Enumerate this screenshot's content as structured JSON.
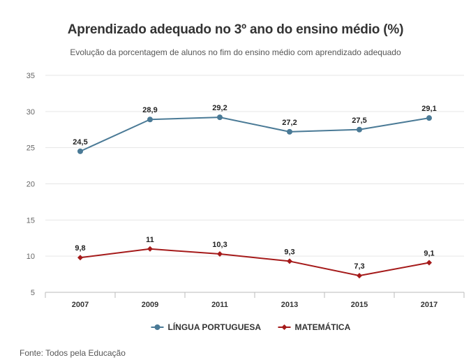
{
  "chart_data": {
    "type": "line",
    "title": "Aprendizado adequado no 3º ano do ensino médio (%)",
    "subtitle": "Evolução da porcentagem de alunos no fim do ensino médio com aprendizado adequado",
    "categories": [
      "2007",
      "2009",
      "2011",
      "2013",
      "2015",
      "2017"
    ],
    "ylim": [
      5,
      35
    ],
    "yticks": [
      5,
      10,
      15,
      20,
      25,
      30,
      35
    ],
    "grid": true,
    "legend_position": "bottom",
    "series": [
      {
        "name": "LÍNGUA PORTUGUESA",
        "color": "#4a7a96",
        "marker": "circle",
        "values": [
          24.5,
          28.9,
          29.2,
          27.2,
          27.5,
          29.1
        ],
        "labels": [
          "24,5",
          "28,9",
          "29,2",
          "27,2",
          "27,5",
          "29,1"
        ]
      },
      {
        "name": "MATEMÁTICA",
        "color": "#a51a1a",
        "marker": "diamond",
        "values": [
          9.8,
          11,
          10.3,
          9.3,
          7.3,
          9.1
        ],
        "labels": [
          "9,8",
          "11",
          "10,3",
          "9,3",
          "7,3",
          "9,1"
        ]
      }
    ]
  },
  "source": "Fonte: Todos pela Educação"
}
